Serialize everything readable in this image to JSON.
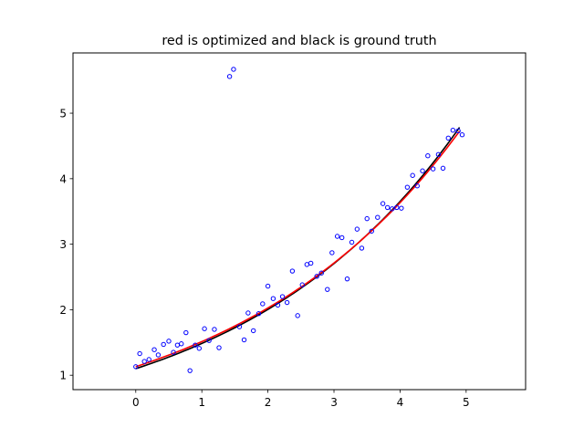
{
  "chart_data": {
    "type": "scatter",
    "title": "red is optimized and black is ground truth",
    "xlabel": "",
    "ylabel": "",
    "xlim": [
      -0.95,
      5.9
    ],
    "ylim": [
      0.78,
      5.92
    ],
    "xticks": [
      0,
      1,
      2,
      3,
      4,
      5
    ],
    "yticks": [
      1,
      2,
      3,
      4,
      5
    ],
    "grid": false,
    "legend": "none",
    "series": [
      {
        "kind": "scatter",
        "color": "#0000ff",
        "marker": "open-circle",
        "points": [
          [
            0.0,
            1.13
          ],
          [
            0.06,
            1.33
          ],
          [
            0.13,
            1.21
          ],
          [
            0.2,
            1.24
          ],
          [
            0.28,
            1.39
          ],
          [
            0.34,
            1.31
          ],
          [
            0.42,
            1.47
          ],
          [
            0.5,
            1.52
          ],
          [
            0.57,
            1.35
          ],
          [
            0.63,
            1.46
          ],
          [
            0.69,
            1.48
          ],
          [
            0.76,
            1.65
          ],
          [
            0.82,
            1.07
          ],
          [
            0.9,
            1.46
          ],
          [
            0.96,
            1.41
          ],
          [
            1.04,
            1.71
          ],
          [
            1.11,
            1.53
          ],
          [
            1.19,
            1.7
          ],
          [
            1.26,
            1.42
          ],
          [
            1.42,
            5.56
          ],
          [
            1.48,
            5.67
          ],
          [
            1.57,
            1.74
          ],
          [
            1.64,
            1.54
          ],
          [
            1.7,
            1.95
          ],
          [
            1.78,
            1.68
          ],
          [
            1.86,
            1.94
          ],
          [
            1.92,
            2.09
          ],
          [
            2.0,
            2.36
          ],
          [
            2.08,
            2.17
          ],
          [
            2.15,
            2.07
          ],
          [
            2.22,
            2.2
          ],
          [
            2.29,
            2.11
          ],
          [
            2.37,
            2.59
          ],
          [
            2.45,
            1.91
          ],
          [
            2.52,
            2.38
          ],
          [
            2.59,
            2.69
          ],
          [
            2.65,
            2.71
          ],
          [
            2.74,
            2.51
          ],
          [
            2.81,
            2.56
          ],
          [
            2.9,
            2.31
          ],
          [
            2.97,
            2.87
          ],
          [
            3.05,
            3.12
          ],
          [
            3.12,
            3.1
          ],
          [
            3.2,
            2.47
          ],
          [
            3.27,
            3.03
          ],
          [
            3.35,
            3.23
          ],
          [
            3.42,
            2.94
          ],
          [
            3.5,
            3.39
          ],
          [
            3.57,
            3.2
          ],
          [
            3.66,
            3.41
          ],
          [
            3.74,
            3.62
          ],
          [
            3.81,
            3.56
          ],
          [
            3.88,
            3.54
          ],
          [
            3.95,
            3.56
          ],
          [
            4.02,
            3.55
          ],
          [
            4.11,
            3.87
          ],
          [
            4.19,
            4.05
          ],
          [
            4.26,
            3.89
          ],
          [
            4.34,
            4.12
          ],
          [
            4.42,
            4.35
          ],
          [
            4.5,
            4.15
          ],
          [
            4.58,
            4.37
          ],
          [
            4.65,
            4.16
          ],
          [
            4.73,
            4.62
          ],
          [
            4.8,
            4.74
          ],
          [
            4.88,
            4.73
          ],
          [
            4.94,
            4.67
          ]
        ]
      },
      {
        "kind": "line",
        "color": "#000000",
        "function": "exp",
        "a": 1.1,
        "b": 0.3,
        "x_range": [
          0,
          4.9
        ]
      },
      {
        "kind": "line",
        "color": "#ff0000",
        "function": "exp",
        "a": 1.13,
        "b": 0.292,
        "x_range": [
          0,
          4.9
        ]
      }
    ]
  }
}
